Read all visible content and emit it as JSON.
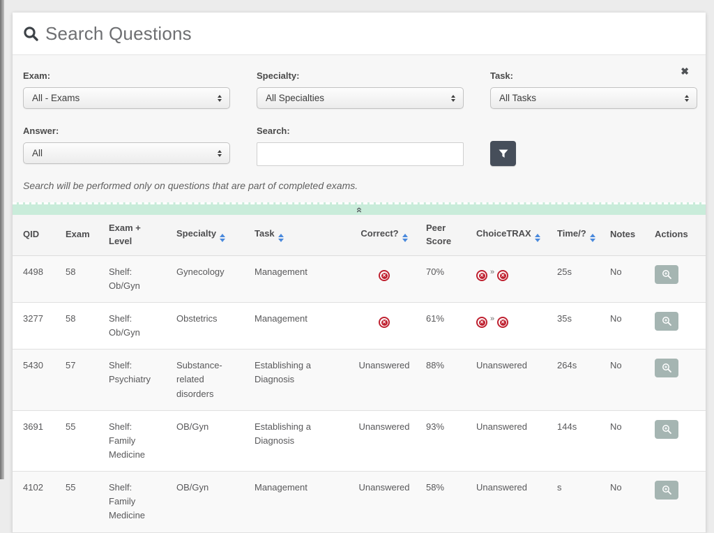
{
  "panel": {
    "title": "Search Questions",
    "close_label": "✖"
  },
  "filters": {
    "exam": {
      "label": "Exam:",
      "value": "All - Exams"
    },
    "specialty": {
      "label": "Specialty:",
      "value": "All Specialties"
    },
    "task": {
      "label": "Task:",
      "value": "All Tasks"
    },
    "answer": {
      "label": "Answer:",
      "value": "All"
    },
    "search": {
      "label": "Search:",
      "value": ""
    },
    "note": "Search will be performed only on questions that are part of completed exams."
  },
  "collapse_bar": {
    "chevrons": "«"
  },
  "table": {
    "choicetrax_separator": "»",
    "columns": [
      {
        "label": "QID"
      },
      {
        "label": "Exam"
      },
      {
        "label": "Exam + Level"
      },
      {
        "label": "Specialty",
        "sortable": true
      },
      {
        "label": "Task",
        "sortable": true
      },
      {
        "label": "Correct?",
        "sortable": true
      },
      {
        "label": "Peer Score"
      },
      {
        "label": "ChoiceTRAX",
        "sortable": true
      },
      {
        "label": "Time/?",
        "sortable": true
      },
      {
        "label": "Notes"
      },
      {
        "label": "Actions"
      }
    ],
    "rows": [
      {
        "qid": "4498",
        "exam": "58",
        "exam_level": "Shelf:\nOb/Gyn",
        "specialty": "Gynecology",
        "task": "Management",
        "correct": "incorrect",
        "peer_score": "70%",
        "choicetrax": "incorrect_pair",
        "time": "25s",
        "notes": "No"
      },
      {
        "qid": "3277",
        "exam": "58",
        "exam_level": "Shelf:\nOb/Gyn",
        "specialty": "Obstetrics",
        "task": "Management",
        "correct": "incorrect",
        "peer_score": "61%",
        "choicetrax": "incorrect_pair",
        "time": "35s",
        "notes": "No"
      },
      {
        "qid": "5430",
        "exam": "57",
        "exam_level": "Shelf:\nPsychiatry",
        "specialty": "Substance-related disorders",
        "task": "Establishing a Diagnosis",
        "correct": "Unanswered",
        "peer_score": "88%",
        "choicetrax": "Unanswered",
        "time": "264s",
        "notes": "No"
      },
      {
        "qid": "3691",
        "exam": "55",
        "exam_level": "Shelf:\nFamily Medicine",
        "specialty": "OB/Gyn",
        "task": "Establishing a Diagnosis",
        "correct": "Unanswered",
        "peer_score": "93%",
        "choicetrax": "Unanswered",
        "time": "144s",
        "notes": "No"
      },
      {
        "qid": "4102",
        "exam": "55",
        "exam_level": "Shelf:\nFamily Medicine",
        "specialty": "OB/Gyn",
        "task": "Management",
        "correct": "Unanswered",
        "peer_score": "58%",
        "choicetrax": "Unanswered",
        "time": "s",
        "notes": "No"
      }
    ]
  },
  "colors": {
    "sort_accent": "#4a89dc",
    "incorrect_red": "#bf2130",
    "collapse_green": "#c9ecda",
    "filter_button_slate": "#464e5a",
    "action_button_gray": "#a5b5b2"
  }
}
